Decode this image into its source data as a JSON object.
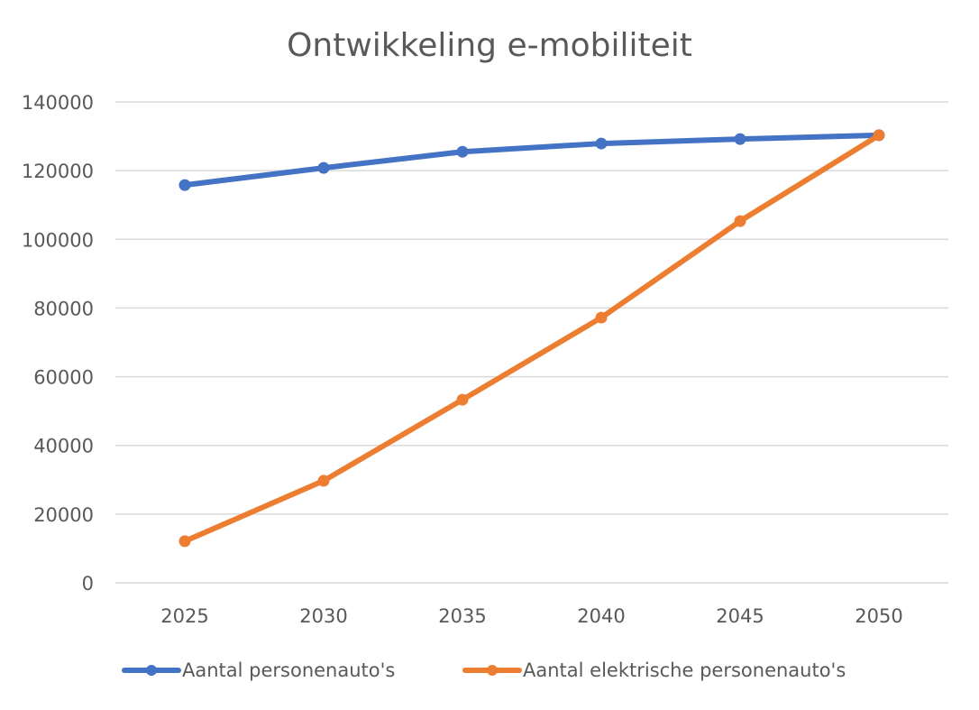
{
  "chart_data": {
    "type": "line",
    "title": "Ontwikkeling e-mobiliteit",
    "xlabel": "",
    "ylabel": "",
    "categories": [
      "2025",
      "2030",
      "2035",
      "2040",
      "2045",
      "2050"
    ],
    "ylim": [
      0,
      140000
    ],
    "yticks": [
      0,
      20000,
      40000,
      60000,
      80000,
      100000,
      120000,
      140000
    ],
    "ytick_labels": [
      "0",
      "20000",
      "40000",
      "60000",
      "80000",
      "100000",
      "120000",
      "140000"
    ],
    "grid": true,
    "legend_position": "bottom",
    "series": [
      {
        "name": "Aantal personenauto's",
        "color": "#4472C4",
        "values": [
          115800,
          120800,
          125500,
          127900,
          129200,
          130300
        ]
      },
      {
        "name": "Aantal elektrische personenauto's",
        "color": "#ED7D31",
        "values": [
          12100,
          29700,
          53300,
          77200,
          105300,
          130300
        ]
      }
    ]
  }
}
